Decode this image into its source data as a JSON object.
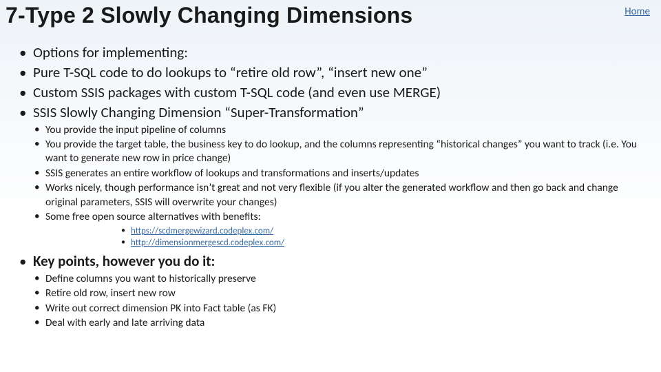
{
  "colors": {
    "link": "#356aa0",
    "text": "#1a1a1a",
    "bg_top": "#eef3f8",
    "bg_bottom": "#ffffff"
  },
  "typography": {
    "title_fontsize_pt": 24,
    "body_fontsize_pt": 16,
    "sub_fontsize_pt": 12,
    "link_fontsize_pt": 10,
    "title_font": "Berlin Sans FB / Trebuchet MS",
    "body_font": "Calibri / Segoe UI"
  },
  "nav": {
    "home": "Home"
  },
  "title": "7-Type 2 Slowly Changing Dimensions",
  "bullets": {
    "b1": "Options for implementing:",
    "b2": "Pure T-SQL code to do lookups to “retire old row”, “insert new one”",
    "b3": "Custom SSIS packages with custom T-SQL code  (and even use MERGE)",
    "b4": "SSIS Slowly Changing Dimension “Super-Transformation”",
    "sub": {
      "s1": "You provide the input pipeline of columns",
      "s2": "You provide the target table, the business key to do lookup, and the columns representing “historical changes” you want to track  (i.e.  You want to generate new row in price change)",
      "s3": "SSIS generates an entire workflow of lookups and transformations and inserts/updates",
      "s4": "Works nicely, though performance isn’t great and not very flexible (if you alter the generated workflow and then go back and change original parameters, SSIS will overwrite your changes)",
      "s5": "Some free open source alternatives with benefits:",
      "links": {
        "l1": "https://scdmergewizard.codeplex.com/",
        "l2": "http://dimensionmergescd.codeplex.com/"
      }
    },
    "key": {
      "title": "Key points, however you do it:",
      "k1": "Define columns you want to historically preserve",
      "k2": "Retire old row, insert new row",
      "k3": "Write out correct dimension PK into Fact table (as FK)",
      "k4": "Deal with early and late arriving data"
    }
  }
}
